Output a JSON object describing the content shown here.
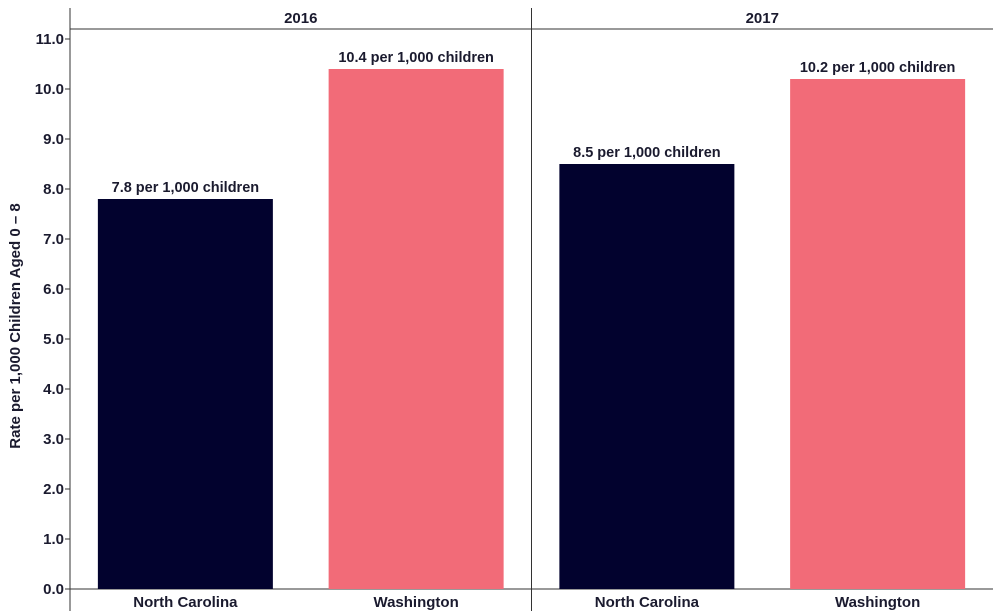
{
  "chart_data": {
    "type": "bar",
    "ylabel": "Rate per 1,000 Children Aged 0 – 8",
    "ylim": [
      0,
      11.0
    ],
    "y_ticks": [
      "0.0",
      "1.0",
      "2.0",
      "3.0",
      "4.0",
      "5.0",
      "6.0",
      "7.0",
      "8.0",
      "9.0",
      "10.0",
      "11.0"
    ],
    "grid": false,
    "colors": {
      "North Carolina": "#02022e",
      "Washington": "#f26b78"
    },
    "panels": [
      {
        "title": "2016",
        "categories": [
          "North Carolina",
          "Washington"
        ],
        "values": [
          7.8,
          10.4
        ],
        "labels": [
          "7.8 per 1,000 children",
          "10.4 per 1,000 children"
        ]
      },
      {
        "title": "2017",
        "categories": [
          "North Carolina",
          "Washington"
        ],
        "values": [
          8.5,
          10.2
        ],
        "labels": [
          "8.5 per 1,000 children",
          "10.2 per 1,000 children"
        ]
      }
    ]
  }
}
